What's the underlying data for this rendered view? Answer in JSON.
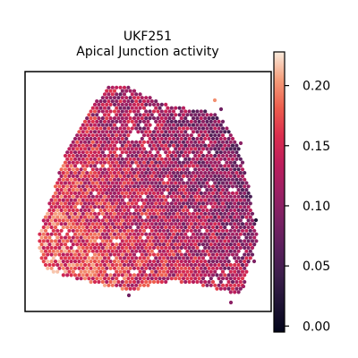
{
  "chart_data": {
    "type": "heatmap",
    "title_line1": "UKF251",
    "title_line2": "Apical Junction activity",
    "xlabel": "",
    "ylabel": "",
    "colorbar": {
      "colormap": "rocket",
      "min": -0.005,
      "max": 0.228,
      "ticks": [
        0.0,
        0.05,
        0.1,
        0.15,
        0.2
      ],
      "tick_labels": [
        "0.00",
        "0.05",
        "0.10",
        "0.15",
        "0.20"
      ]
    },
    "regions": [
      {
        "name": "lower-left",
        "mean_value": 0.17
      },
      {
        "name": "upper-left",
        "mean_value": 0.12
      },
      {
        "name": "center",
        "mean_value": 0.11
      },
      {
        "name": "upper-right",
        "mean_value": 0.07
      },
      {
        "name": "right-edge",
        "mean_value": 0.09
      }
    ],
    "grid": false
  }
}
